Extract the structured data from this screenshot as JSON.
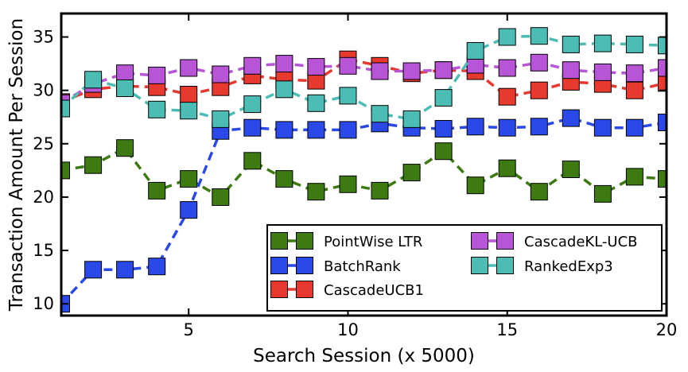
{
  "chart_data": {
    "type": "line",
    "title": "",
    "xlabel": "Search Session (x 5000)",
    "ylabel": "Transaction Amount Per Session",
    "xlim": [
      1,
      20
    ],
    "ylim": [
      8.9,
      37.2
    ],
    "x_ticks": [
      5,
      10,
      15,
      20
    ],
    "y_ticks": [
      10,
      15,
      20,
      25,
      30,
      35
    ],
    "grid": false,
    "legend_position": "lower-right",
    "x": [
      1,
      2,
      3,
      4,
      5,
      6,
      7,
      8,
      9,
      10,
      11,
      12,
      13,
      14,
      15,
      16,
      17,
      18,
      19,
      20
    ],
    "series": [
      {
        "name": "PointWise LTR",
        "color": "#3d7a12",
        "values": [
          22.5,
          23.0,
          24.6,
          20.6,
          21.7,
          20.0,
          23.4,
          21.7,
          20.5,
          21.2,
          20.6,
          22.3,
          24.3,
          21.1,
          22.7,
          20.5,
          22.6,
          20.3,
          21.9,
          21.7
        ]
      },
      {
        "name": "BatchRank",
        "color": "#2a49e8",
        "values": [
          10.0,
          13.2,
          13.2,
          13.5,
          18.8,
          26.2,
          26.5,
          26.3,
          26.3,
          26.3,
          26.9,
          26.5,
          26.4,
          26.6,
          26.5,
          26.6,
          27.4,
          26.5,
          26.5,
          27.0
        ]
      },
      {
        "name": "CascadeUCB1",
        "color": "#e8392f",
        "values": [
          28.9,
          30.1,
          30.4,
          30.3,
          29.6,
          30.3,
          31.4,
          31.0,
          30.9,
          32.9,
          32.3,
          31.6,
          31.9,
          31.8,
          29.4,
          30.0,
          30.8,
          30.6,
          30.0,
          30.7
        ]
      },
      {
        "name": "CascadeKL-UCB",
        "color": "#b855d6",
        "values": [
          28.8,
          30.6,
          31.6,
          31.4,
          32.1,
          31.5,
          32.3,
          32.5,
          32.2,
          32.3,
          31.8,
          31.8,
          31.9,
          32.4,
          32.1,
          32.6,
          31.9,
          31.7,
          31.6,
          32.1
        ]
      },
      {
        "name": "RankedExp3",
        "color": "#4cbdb5",
        "values": [
          28.3,
          31.0,
          30.2,
          28.2,
          28.1,
          27.3,
          28.7,
          30.1,
          28.8,
          29.5,
          27.8,
          27.3,
          29.3,
          33.7,
          35.0,
          35.1,
          34.3,
          34.4,
          34.3,
          34.2
        ]
      }
    ]
  }
}
